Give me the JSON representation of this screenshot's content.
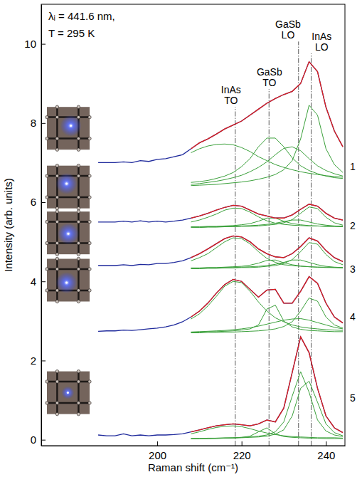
{
  "chart_data": {
    "type": "line",
    "title": "λᵢ = 441.6 nm,",
    "subtitle": "T = 295 K",
    "x_label": "Raman shift (cm⁻¹)",
    "y_label": "Intensity (arb. units)",
    "grid": false,
    "xlim": [
      172.5,
      244.5
    ],
    "ylim": [
      -0.15,
      11
    ],
    "xticks": [
      200,
      220,
      240
    ],
    "yticks": [
      0,
      2,
      4,
      6,
      8,
      10
    ],
    "x": [
      186,
      188,
      190,
      192,
      194,
      196,
      198,
      200,
      202,
      204,
      206,
      208,
      210,
      212,
      214,
      216,
      218,
      220,
      222,
      224,
      226,
      228,
      230,
      232,
      234,
      236,
      238,
      240,
      242,
      244
    ],
    "series": [
      {
        "color": "#3aa03a",
        "values": [
          null,
          null,
          null,
          null,
          null,
          null,
          null,
          null,
          null,
          null,
          null,
          7.25,
          7.35,
          7.42,
          7.46,
          7.47,
          7.45,
          7.38,
          7.28,
          7.15,
          7.05,
          6.95,
          6.88,
          6.82,
          6.77,
          6.73,
          6.7,
          6.67,
          6.65,
          6.63
        ]
      },
      {
        "color": "#3aa03a",
        "values": [
          null,
          null,
          null,
          null,
          null,
          null,
          null,
          null,
          null,
          null,
          null,
          6.5,
          6.52,
          6.55,
          6.6,
          6.66,
          6.75,
          6.9,
          7.1,
          7.4,
          7.62,
          7.62,
          7.4,
          7.12,
          6.92,
          6.8,
          6.72,
          6.66,
          6.62,
          6.6
        ]
      },
      {
        "color": "#3aa03a",
        "values": [
          null,
          null,
          null,
          null,
          null,
          null,
          null,
          null,
          null,
          null,
          null,
          6.45,
          6.47,
          6.5,
          6.53,
          6.57,
          6.62,
          6.68,
          6.77,
          6.88,
          7.02,
          7.2,
          7.36,
          7.4,
          7.3,
          7.1,
          6.92,
          6.8,
          6.72,
          6.66
        ]
      },
      {
        "color": "#3aa03a",
        "values": [
          null,
          null,
          null,
          null,
          null,
          null,
          null,
          null,
          null,
          null,
          null,
          6.42,
          6.43,
          6.44,
          6.45,
          6.47,
          6.49,
          6.51,
          6.54,
          6.58,
          6.63,
          6.7,
          6.82,
          7.05,
          7.6,
          8.45,
          8.2,
          7.35,
          6.95,
          6.75
        ]
      },
      {
        "color": "#1f2a9c",
        "values": [
          7.0,
          7.0,
          7.0,
          7.02,
          7.0,
          7.05,
          7.03,
          7.08,
          7.1,
          7.15,
          7.2,
          7.35,
          7.5,
          7.6,
          7.72,
          7.85,
          7.95,
          8.05,
          8.2,
          8.35,
          8.5,
          8.62,
          8.72,
          8.8,
          9.0,
          9.55,
          9.3,
          8.4,
          7.8,
          7.4
        ]
      },
      {
        "color": "#e0201b",
        "values": [
          null,
          null,
          null,
          null,
          null,
          null,
          null,
          null,
          null,
          null,
          null,
          7.35,
          7.5,
          7.6,
          7.72,
          7.85,
          7.95,
          8.05,
          8.2,
          8.35,
          8.5,
          8.62,
          8.72,
          8.8,
          9.0,
          9.55,
          9.3,
          8.4,
          7.8,
          7.4
        ]
      },
      {
        "color": "#3aa03a",
        "values": [
          null,
          null,
          null,
          null,
          null,
          null,
          null,
          null,
          null,
          null,
          null,
          5.5,
          5.55,
          5.62,
          5.7,
          5.8,
          5.85,
          5.84,
          5.75,
          5.63,
          5.53,
          5.47,
          5.44,
          5.42,
          5.41,
          5.4,
          5.4,
          5.39,
          5.39,
          5.39
        ]
      },
      {
        "color": "#3aa03a",
        "values": [
          null,
          null,
          null,
          null,
          null,
          null,
          null,
          null,
          null,
          null,
          null,
          5.38,
          5.38,
          5.39,
          5.39,
          5.4,
          5.41,
          5.43,
          5.46,
          5.52,
          5.6,
          5.6,
          5.52,
          5.46,
          5.43,
          5.41,
          5.4,
          5.39,
          5.39,
          5.38
        ]
      },
      {
        "color": "#3aa03a",
        "values": [
          null,
          null,
          null,
          null,
          null,
          null,
          null,
          null,
          null,
          null,
          null,
          5.37,
          5.37,
          5.38,
          5.38,
          5.39,
          5.39,
          5.4,
          5.41,
          5.42,
          5.44,
          5.47,
          5.51,
          5.55,
          5.55,
          5.5,
          5.45,
          5.42,
          5.4,
          5.39
        ]
      },
      {
        "color": "#3aa03a",
        "values": [
          null,
          null,
          null,
          null,
          null,
          null,
          null,
          null,
          null,
          null,
          null,
          5.36,
          5.36,
          5.37,
          5.37,
          5.38,
          5.38,
          5.39,
          5.39,
          5.4,
          5.42,
          5.44,
          5.48,
          5.56,
          5.72,
          5.88,
          5.84,
          5.62,
          5.48,
          5.42
        ]
      },
      {
        "color": "#1f2a9c",
        "values": [
          5.5,
          5.5,
          5.5,
          5.52,
          5.5,
          5.53,
          5.5,
          5.52,
          5.5,
          5.52,
          5.55,
          5.6,
          5.65,
          5.72,
          5.8,
          5.87,
          5.92,
          5.9,
          5.8,
          5.7,
          5.65,
          5.6,
          5.6,
          5.68,
          5.82,
          5.95,
          5.9,
          5.72,
          5.6,
          5.55
        ]
      },
      {
        "color": "#e0201b",
        "values": [
          null,
          null,
          null,
          null,
          null,
          null,
          null,
          null,
          null,
          null,
          null,
          5.6,
          5.65,
          5.72,
          5.8,
          5.87,
          5.92,
          5.9,
          5.8,
          5.7,
          5.65,
          5.6,
          5.6,
          5.68,
          5.82,
          5.95,
          5.9,
          5.72,
          5.6,
          5.55
        ]
      },
      {
        "color": "#3aa03a",
        "values": [
          null,
          null,
          null,
          null,
          null,
          null,
          null,
          null,
          null,
          null,
          null,
          4.52,
          4.6,
          4.7,
          4.85,
          5.0,
          5.1,
          5.08,
          4.95,
          4.75,
          4.58,
          4.48,
          4.42,
          4.4,
          4.38,
          4.37,
          4.36,
          4.36,
          4.35,
          4.35
        ]
      },
      {
        "color": "#3aa03a",
        "values": [
          null,
          null,
          null,
          null,
          null,
          null,
          null,
          null,
          null,
          null,
          null,
          4.34,
          4.34,
          4.35,
          4.35,
          4.36,
          4.37,
          4.38,
          4.41,
          4.46,
          4.53,
          4.54,
          4.47,
          4.42,
          4.39,
          4.37,
          4.36,
          4.35,
          4.35,
          4.34
        ]
      },
      {
        "color": "#3aa03a",
        "values": [
          null,
          null,
          null,
          null,
          null,
          null,
          null,
          null,
          null,
          null,
          null,
          4.33,
          4.33,
          4.34,
          4.34,
          4.35,
          4.35,
          4.36,
          4.37,
          4.38,
          4.4,
          4.43,
          4.48,
          4.54,
          4.54,
          4.48,
          4.42,
          4.38,
          4.36,
          4.35
        ]
      },
      {
        "color": "#3aa03a",
        "values": [
          null,
          null,
          null,
          null,
          null,
          null,
          null,
          null,
          null,
          null,
          null,
          4.32,
          4.32,
          4.33,
          4.33,
          4.34,
          4.34,
          4.35,
          4.35,
          4.36,
          4.38,
          4.4,
          4.45,
          4.55,
          4.75,
          4.98,
          4.94,
          4.68,
          4.5,
          4.42
        ]
      },
      {
        "color": "#1f2a9c",
        "values": [
          4.4,
          4.4,
          4.4,
          4.42,
          4.4,
          4.43,
          4.42,
          4.45,
          4.45,
          4.48,
          4.52,
          4.6,
          4.7,
          4.82,
          4.95,
          5.08,
          5.15,
          5.12,
          5.0,
          4.82,
          4.7,
          4.62,
          4.6,
          4.7,
          4.88,
          5.1,
          5.02,
          4.78,
          4.6,
          4.5
        ]
      },
      {
        "color": "#e0201b",
        "values": [
          null,
          null,
          null,
          null,
          null,
          null,
          null,
          null,
          null,
          null,
          null,
          4.6,
          4.7,
          4.82,
          4.95,
          5.08,
          5.15,
          5.12,
          5.0,
          4.82,
          4.7,
          4.62,
          4.6,
          4.7,
          4.88,
          5.1,
          5.02,
          4.78,
          4.6,
          4.5
        ]
      },
      {
        "color": "#3aa03a",
        "values": [
          null,
          null,
          null,
          null,
          null,
          null,
          null,
          null,
          null,
          null,
          null,
          3.05,
          3.18,
          3.38,
          3.62,
          3.88,
          4.0,
          3.97,
          3.75,
          3.48,
          3.25,
          3.08,
          2.98,
          2.9,
          2.85,
          2.82,
          2.8,
          2.78,
          2.77,
          2.76
        ]
      },
      {
        "color": "#3aa03a",
        "values": [
          null,
          null,
          null,
          null,
          null,
          null,
          null,
          null,
          null,
          null,
          null,
          2.72,
          2.72,
          2.73,
          2.73,
          2.74,
          2.75,
          2.77,
          2.8,
          2.9,
          3.3,
          3.4,
          3.0,
          2.85,
          2.79,
          2.76,
          2.75,
          2.74,
          2.73,
          2.73
        ]
      },
      {
        "color": "#3aa03a",
        "values": [
          null,
          null,
          null,
          null,
          null,
          null,
          null,
          null,
          null,
          null,
          null,
          2.72,
          2.73,
          2.74,
          2.75,
          2.76,
          2.78,
          2.8,
          2.83,
          2.87,
          2.92,
          2.97,
          3.02,
          3.05,
          3.06,
          3.02,
          2.96,
          2.9,
          2.84,
          2.8
        ]
      },
      {
        "color": "#3aa03a",
        "values": [
          null,
          null,
          null,
          null,
          null,
          null,
          null,
          null,
          null,
          null,
          null,
          2.7,
          2.7,
          2.71,
          2.71,
          2.72,
          2.72,
          2.73,
          2.74,
          2.75,
          2.77,
          2.8,
          2.86,
          2.98,
          3.25,
          3.58,
          3.5,
          3.1,
          2.9,
          2.82
        ]
      },
      {
        "color": "#1f2a9c",
        "values": [
          2.74,
          2.75,
          2.75,
          2.77,
          2.76,
          2.78,
          2.8,
          2.82,
          2.85,
          2.9,
          2.98,
          3.1,
          3.25,
          3.45,
          3.7,
          3.92,
          4.05,
          4.0,
          3.8,
          3.6,
          3.78,
          3.8,
          3.45,
          3.45,
          3.75,
          4.12,
          3.95,
          3.45,
          3.1,
          2.95
        ]
      },
      {
        "color": "#e0201b",
        "values": [
          null,
          null,
          null,
          null,
          null,
          null,
          null,
          null,
          null,
          null,
          null,
          3.1,
          3.25,
          3.45,
          3.7,
          3.92,
          4.05,
          4.0,
          3.8,
          3.6,
          3.78,
          3.8,
          3.45,
          3.45,
          3.75,
          4.12,
          3.95,
          3.45,
          3.1,
          2.95
        ]
      },
      {
        "color": "#3aa03a",
        "values": [
          null,
          null,
          null,
          null,
          null,
          null,
          null,
          null,
          null,
          null,
          null,
          0.15,
          0.2,
          0.26,
          0.31,
          0.34,
          0.35,
          0.33,
          0.28,
          0.22,
          0.17,
          0.13,
          0.1,
          0.08,
          0.07,
          0.06,
          0.05,
          0.05,
          0.05,
          0.04
        ]
      },
      {
        "color": "#3aa03a",
        "values": [
          null,
          null,
          null,
          null,
          null,
          null,
          null,
          null,
          null,
          null,
          null,
          0.03,
          0.03,
          0.03,
          0.04,
          0.04,
          0.05,
          0.06,
          0.09,
          0.2,
          0.3,
          0.15,
          0.08,
          0.06,
          0.05,
          0.04,
          0.04,
          0.03,
          0.03,
          0.03
        ]
      },
      {
        "color": "#3aa03a",
        "values": [
          null,
          null,
          null,
          null,
          null,
          null,
          null,
          null,
          null,
          null,
          null,
          0.03,
          0.03,
          0.04,
          0.04,
          0.05,
          0.05,
          0.06,
          0.07,
          0.09,
          0.12,
          0.2,
          0.45,
          1.1,
          1.72,
          1.2,
          0.5,
          0.22,
          0.12,
          0.08
        ]
      },
      {
        "color": "#3aa03a",
        "values": [
          null,
          null,
          null,
          null,
          null,
          null,
          null,
          null,
          null,
          null,
          null,
          0.02,
          0.03,
          0.03,
          0.03,
          0.04,
          0.04,
          0.05,
          0.06,
          0.07,
          0.09,
          0.14,
          0.25,
          0.6,
          1.3,
          1.48,
          0.95,
          0.4,
          0.18,
          0.1
        ]
      },
      {
        "color": "#1f2a9c",
        "values": [
          0.12,
          0.1,
          0.1,
          0.15,
          0.1,
          0.12,
          0.1,
          0.12,
          0.12,
          0.13,
          0.15,
          0.2,
          0.25,
          0.3,
          0.35,
          0.38,
          0.4,
          0.38,
          0.35,
          0.4,
          0.5,
          0.45,
          0.8,
          1.7,
          2.6,
          2.2,
          1.3,
          0.6,
          0.3,
          0.18
        ]
      },
      {
        "color": "#e0201b",
        "values": [
          null,
          null,
          null,
          null,
          null,
          null,
          null,
          null,
          null,
          null,
          null,
          0.2,
          0.25,
          0.3,
          0.35,
          0.38,
          0.4,
          0.38,
          0.35,
          0.4,
          0.5,
          0.45,
          0.8,
          1.7,
          2.6,
          2.2,
          1.3,
          0.6,
          0.3,
          0.18
        ]
      }
    ],
    "reference_lines": [
      {
        "label": "InAs TO",
        "x": 218.5,
        "text_x": 217.5,
        "text_y": 8.75,
        "line_style": "dashdot"
      },
      {
        "label": "GaSb TO",
        "x": 226.5,
        "text_x": 226.6,
        "text_y": 9.2,
        "line_style": "dashdot"
      },
      {
        "label": "GaSb LO",
        "x": 233.5,
        "text_x": 231,
        "text_y": 10.4,
        "line_style": "dashdot"
      },
      {
        "label": "InAs LO",
        "x": 236.5,
        "text_x": 239,
        "text_y": 10.1,
        "line_style": "dashdot"
      }
    ],
    "annotations": [
      {
        "text": "1",
        "y": 6.9
      },
      {
        "text": "2",
        "y": 5.4
      },
      {
        "text": "3",
        "y": 4.3
      },
      {
        "text": "4",
        "y": 3.1
      },
      {
        "text": "5",
        "y": 1.05
      }
    ]
  }
}
